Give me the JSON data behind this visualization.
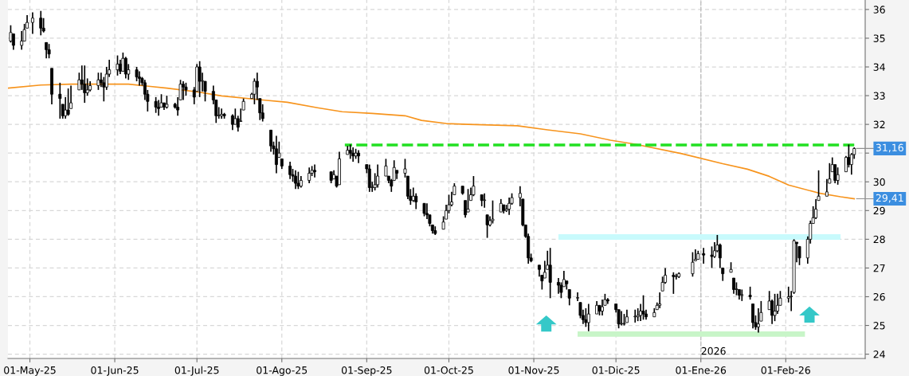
{
  "chart_data": {
    "type": "candlestick",
    "color": "#000000",
    "x": [
      "2025-04-24",
      "2025-04-25",
      "2025-04-28",
      "2025-04-29",
      "2025-04-30",
      "2025-05-02",
      "2025-05-05",
      "2025-05-06",
      "2025-05-07",
      "2025-05-08",
      "2025-05-09",
      "2025-05-12",
      "2025-05-13",
      "2025-05-14",
      "2025-05-15",
      "2025-05-16",
      "2025-05-19",
      "2025-05-20",
      "2025-05-21",
      "2025-05-22",
      "2025-05-23",
      "2025-05-26",
      "2025-05-27",
      "2025-05-28",
      "2025-05-29",
      "2025-05-30",
      "2025-06-02",
      "2025-06-03",
      "2025-06-04",
      "2025-06-05",
      "2025-06-06",
      "2025-06-09",
      "2025-06-10",
      "2025-06-11",
      "2025-06-12",
      "2025-06-13",
      "2025-06-16",
      "2025-06-17",
      "2025-06-18",
      "2025-06-19",
      "2025-06-20",
      "2025-06-23",
      "2025-06-24",
      "2025-06-25",
      "2025-06-26",
      "2025-06-27",
      "2025-06-30",
      "2025-07-01",
      "2025-07-02",
      "2025-07-03",
      "2025-07-04",
      "2025-07-07",
      "2025-07-08",
      "2025-07-09",
      "2025-07-10",
      "2025-07-11",
      "2025-07-14",
      "2025-07-15",
      "2025-07-16",
      "2025-07-17",
      "2025-07-18",
      "2025-07-21",
      "2025-07-22",
      "2025-07-23",
      "2025-07-24",
      "2025-07-25",
      "2025-07-28",
      "2025-07-29",
      "2025-07-30",
      "2025-07-31",
      "2025-08-01",
      "2025-08-04",
      "2025-08-05",
      "2025-08-06",
      "2025-08-07",
      "2025-08-08",
      "2025-08-11",
      "2025-08-12",
      "2025-08-13",
      "2025-08-19",
      "2025-08-20",
      "2025-08-21",
      "2025-08-22",
      "2025-08-25",
      "2025-08-26",
      "2025-08-27",
      "2025-08-28",
      "2025-08-29",
      "2025-09-01",
      "2025-09-02",
      "2025-09-03",
      "2025-09-04",
      "2025-09-05",
      "2025-09-08",
      "2025-09-09",
      "2025-09-10",
      "2025-09-11",
      "2025-09-12",
      "2025-09-15",
      "2025-09-16",
      "2025-09-17",
      "2025-09-18",
      "2025-09-19",
      "2025-09-22",
      "2025-09-23",
      "2025-09-24",
      "2025-09-25",
      "2025-09-26",
      "2025-09-29",
      "2025-09-30",
      "2025-10-01",
      "2025-10-02",
      "2025-10-03",
      "2025-10-06",
      "2025-10-07",
      "2025-10-08",
      "2025-10-09",
      "2025-10-10",
      "2025-10-13",
      "2025-10-14",
      "2025-10-15",
      "2025-10-16",
      "2025-10-17",
      "2025-10-20",
      "2025-10-21",
      "2025-10-22",
      "2025-10-23",
      "2025-10-24",
      "2025-10-27",
      "2025-10-28",
      "2025-10-29",
      "2025-10-30",
      "2025-10-31",
      "2025-11-03",
      "2025-11-04",
      "2025-11-05",
      "2025-11-06",
      "2025-11-07",
      "2025-11-10",
      "2025-11-11",
      "2025-11-12",
      "2025-11-13",
      "2025-11-14",
      "2025-11-17",
      "2025-11-18",
      "2025-11-19",
      "2025-11-20",
      "2025-11-21",
      "2025-11-24",
      "2025-11-25",
      "2025-11-26",
      "2025-11-27",
      "2025-11-28",
      "2025-12-01",
      "2025-12-02",
      "2025-12-03",
      "2025-12-04",
      "2025-12-05",
      "2025-12-08",
      "2025-12-09",
      "2025-12-10",
      "2025-12-11",
      "2025-12-12",
      "2025-12-15",
      "2025-12-16",
      "2025-12-17",
      "2025-12-18",
      "2025-12-19",
      "2025-12-22",
      "2025-12-23",
      "2025-12-24",
      "2025-12-29",
      "2025-12-30",
      "2025-12-31",
      "2026-01-02",
      "2026-01-05",
      "2026-01-06",
      "2026-01-07",
      "2026-01-08",
      "2026-01-09",
      "2026-01-12",
      "2026-01-13",
      "2026-01-14",
      "2026-01-15",
      "2026-01-16",
      "2026-01-19",
      "2026-01-20",
      "2026-01-21",
      "2026-01-22",
      "2026-01-23",
      "2026-01-26",
      "2026-01-27",
      "2026-01-28",
      "2026-01-29",
      "2026-01-30",
      "2026-02-02",
      "2026-02-03",
      "2026-02-04",
      "2026-02-05",
      "2026-02-06",
      "2026-02-09",
      "2026-02-10",
      "2026-02-11",
      "2026-02-12",
      "2026-02-13",
      "2026-02-16",
      "2026-02-17",
      "2026-02-18",
      "2026-02-19",
      "2026-02-20",
      "2026-02-23",
      "2026-02-24",
      "2026-02-25",
      "2026-02-26"
    ],
    "ohlc": [
      [
        34.9,
        35.45,
        34.85,
        35.2
      ],
      [
        35.15,
        35.15,
        34.6,
        34.75
      ],
      [
        34.75,
        35.25,
        34.6,
        34.9
      ],
      [
        34.9,
        35.5,
        34.9,
        35.3
      ],
      [
        35.35,
        35.8,
        35.35,
        35.55
      ],
      [
        35.55,
        35.9,
        35.15,
        35.7
      ],
      [
        35.7,
        35.95,
        35.1,
        35.35
      ],
      [
        35.35,
        35.7,
        35.2,
        35.25
      ],
      [
        34.85,
        34.85,
        34.3,
        34.6
      ],
      [
        34.6,
        34.8,
        34.3,
        34.45
      ],
      [
        33.95,
        33.95,
        32.7,
        33.05
      ],
      [
        33.05,
        33.45,
        32.2,
        32.9
      ],
      [
        32.7,
        32.7,
        32.2,
        32.3
      ],
      [
        32.3,
        32.95,
        32.2,
        32.5
      ],
      [
        32.5,
        33.25,
        32.3,
        32.35
      ],
      [
        32.55,
        33.35,
        32.55,
        32.75
      ],
      [
        33.2,
        33.8,
        33.2,
        33.55
      ],
      [
        33.55,
        34.05,
        33.2,
        33.4
      ],
      [
        33.4,
        34.05,
        32.75,
        33.1
      ],
      [
        33.1,
        33.6,
        33.0,
        33.2
      ],
      [
        33.2,
        33.5,
        33.15,
        33.35
      ],
      [
        33.35,
        33.8,
        33.2,
        33.55
      ],
      [
        33.55,
        33.8,
        33.3,
        33.45
      ],
      [
        33.45,
        33.65,
        32.8,
        33.3
      ],
      [
        33.3,
        34.0,
        33.2,
        33.75
      ],
      [
        33.75,
        34.25,
        33.65,
        33.9
      ],
      [
        33.9,
        34.4,
        33.7,
        34.1
      ],
      [
        34.1,
        34.25,
        33.75,
        33.85
      ],
      [
        33.85,
        34.5,
        33.85,
        34.3
      ],
      [
        34.3,
        34.35,
        33.6,
        33.75
      ],
      [
        33.75,
        34.1,
        33.55,
        33.9
      ],
      [
        33.9,
        34.0,
        33.5,
        33.65
      ],
      [
        33.65,
        33.85,
        33.35,
        33.6
      ],
      [
        33.6,
        33.65,
        33.35,
        33.45
      ],
      [
        33.45,
        33.55,
        32.85,
        33.05
      ],
      [
        33.05,
        33.2,
        32.45,
        32.8
      ],
      [
        32.8,
        32.95,
        32.4,
        32.6
      ],
      [
        32.6,
        32.85,
        32.3,
        32.55
      ],
      [
        32.6,
        33.05,
        32.6,
        32.75
      ],
      [
        32.75,
        32.75,
        32.5,
        32.6
      ],
      [
        32.6,
        33.0,
        32.55,
        32.7
      ],
      [
        32.7,
        32.75,
        32.55,
        32.6
      ],
      [
        32.6,
        32.95,
        32.3,
        32.5
      ],
      [
        32.85,
        33.55,
        32.85,
        33.4
      ],
      [
        33.4,
        33.5,
        32.85,
        33.3
      ],
      [
        33.3,
        33.45,
        33.0,
        33.2
      ],
      [
        33.2,
        33.3,
        32.7,
        32.95
      ],
      [
        33.15,
        34.1,
        33.15,
        34.0
      ],
      [
        34.0,
        34.2,
        32.95,
        33.5
      ],
      [
        33.5,
        33.8,
        33.15,
        33.5
      ],
      [
        33.5,
        33.5,
        32.8,
        33.15
      ],
      [
        33.15,
        33.35,
        32.7,
        32.85
      ],
      [
        32.85,
        32.85,
        32.05,
        32.3
      ],
      [
        32.3,
        32.6,
        32.2,
        32.3
      ],
      [
        32.3,
        32.55,
        32.2,
        32.35
      ],
      [
        32.35,
        32.4,
        32.2,
        32.3
      ],
      [
        32.3,
        32.35,
        31.8,
        32.0
      ],
      [
        32.0,
        32.55,
        32.0,
        32.2
      ],
      [
        32.2,
        32.3,
        31.75,
        31.9
      ],
      [
        32.1,
        32.55,
        32.1,
        32.1
      ],
      [
        32.5,
        32.9,
        32.5,
        32.8
      ],
      [
        32.9,
        33.1,
        32.9,
        33.05
      ],
      [
        33.05,
        33.6,
        32.7,
        33.5
      ],
      [
        33.5,
        33.8,
        32.85,
        33.3
      ],
      [
        32.9,
        32.9,
        32.15,
        32.4
      ],
      [
        32.4,
        32.7,
        32.1,
        32.2
      ],
      [
        31.8,
        31.8,
        31.05,
        31.25
      ],
      [
        31.25,
        31.4,
        30.95,
        31.15
      ],
      [
        31.15,
        31.6,
        30.3,
        30.6
      ],
      [
        30.85,
        31.4,
        30.85,
        31.0
      ],
      [
        30.8,
        30.8,
        30.45,
        30.55
      ],
      [
        30.55,
        30.7,
        30.1,
        30.25
      ],
      [
        30.25,
        30.45,
        30.0,
        30.2
      ],
      [
        30.2,
        30.4,
        29.75,
        29.95
      ],
      [
        29.95,
        30.35,
        29.75,
        29.85
      ],
      [
        29.85,
        30.2,
        29.8,
        30.05
      ],
      [
        30.05,
        30.5,
        29.95,
        30.3
      ],
      [
        30.3,
        30.55,
        30.2,
        30.4
      ],
      [
        30.4,
        30.6,
        30.15,
        30.35
      ],
      [
        30.35,
        30.35,
        29.95,
        30.05
      ],
      [
        30.1,
        30.4,
        30.1,
        30.25
      ],
      [
        30.2,
        30.2,
        29.8,
        29.85
      ],
      [
        29.9,
        31.05,
        29.9,
        30.8
      ],
      [
        30.95,
        31.25,
        30.95,
        31.1
      ],
      [
        31.1,
        31.3,
        30.8,
        31.0
      ],
      [
        31.0,
        31.2,
        30.7,
        30.9
      ],
      [
        30.9,
        31.15,
        30.8,
        31.0
      ],
      [
        31.0,
        31.1,
        30.65,
        30.9
      ],
      [
        30.6,
        30.6,
        30.3,
        30.45
      ],
      [
        30.45,
        30.6,
        29.65,
        29.8
      ],
      [
        29.8,
        30.0,
        29.65,
        29.8
      ],
      [
        29.8,
        30.3,
        29.7,
        29.9
      ],
      [
        29.9,
        30.6,
        29.8,
        30.2
      ],
      [
        30.2,
        30.8,
        30.2,
        30.55
      ],
      [
        30.2,
        30.2,
        29.95,
        30.05
      ],
      [
        30.05,
        30.1,
        29.65,
        29.85
      ],
      [
        30.05,
        30.75,
        30.05,
        30.5
      ],
      [
        30.4,
        30.4,
        30.1,
        30.3
      ],
      [
        30.3,
        30.8,
        30.15,
        30.45
      ],
      [
        30.2,
        30.2,
        29.4,
        29.5
      ],
      [
        29.5,
        29.75,
        29.2,
        29.35
      ],
      [
        29.35,
        29.8,
        29.3,
        29.5
      ],
      [
        29.5,
        29.6,
        29.05,
        29.3
      ],
      [
        29.25,
        29.25,
        28.8,
        28.9
      ],
      [
        28.9,
        29.25,
        28.7,
        28.85
      ],
      [
        28.85,
        28.85,
        28.45,
        28.55
      ],
      [
        28.5,
        28.5,
        28.2,
        28.3
      ],
      [
        28.3,
        28.45,
        28.15,
        28.2
      ],
      [
        28.35,
        28.8,
        28.35,
        28.6
      ],
      [
        28.7,
        29.2,
        28.7,
        29.0
      ],
      [
        29.0,
        29.55,
        28.9,
        29.2
      ],
      [
        29.2,
        29.65,
        29.15,
        29.3
      ],
      [
        29.55,
        29.95,
        29.55,
        29.85
      ],
      [
        29.85,
        29.85,
        29.55,
        29.6
      ],
      [
        29.35,
        29.35,
        28.75,
        28.85
      ],
      [
        28.95,
        29.75,
        28.95,
        29.05
      ],
      [
        29.35,
        29.8,
        29.35,
        29.55
      ],
      [
        29.55,
        30.2,
        29.5,
        29.85
      ],
      [
        29.55,
        29.55,
        29.15,
        29.35
      ],
      [
        29.35,
        29.6,
        29.1,
        29.35
      ],
      [
        28.85,
        28.85,
        28.05,
        28.5
      ],
      [
        28.5,
        28.8,
        28.45,
        28.65
      ],
      [
        28.65,
        29.35,
        28.55,
        28.7
      ],
      [
        28.95,
        29.4,
        28.95,
        29.25
      ],
      [
        29.2,
        29.2,
        28.9,
        29.0
      ],
      [
        29.0,
        29.2,
        28.95,
        29.05
      ],
      [
        29.05,
        29.45,
        28.85,
        29.25
      ],
      [
        29.25,
        29.6,
        29.2,
        29.45
      ],
      [
        29.45,
        29.85,
        29.15,
        29.6
      ],
      [
        29.4,
        29.4,
        28.45,
        28.5
      ],
      [
        28.5,
        28.5,
        28.05,
        28.1
      ],
      [
        28.1,
        28.2,
        27.15,
        27.35
      ],
      [
        27.35,
        27.5,
        27.2,
        27.25
      ],
      [
        27.1,
        27.1,
        26.7,
        26.95
      ],
      [
        26.75,
        26.75,
        26.25,
        26.55
      ],
      [
        26.65,
        27.25,
        26.65,
        26.85
      ],
      [
        26.95,
        27.6,
        26.95,
        27.1
      ],
      [
        27.1,
        27.7,
        25.95,
        26.5
      ],
      [
        26.5,
        26.65,
        26.1,
        26.4
      ],
      [
        26.4,
        26.5,
        25.95,
        26.15
      ],
      [
        26.35,
        26.9,
        26.35,
        26.6
      ],
      [
        26.55,
        26.55,
        26.25,
        26.45
      ],
      [
        26.25,
        26.25,
        25.7,
        25.95
      ],
      [
        25.95,
        26.15,
        25.85,
        25.95
      ],
      [
        25.8,
        25.8,
        25.25,
        25.35
      ],
      [
        25.35,
        25.55,
        25.05,
        25.2
      ],
      [
        25.2,
        25.6,
        24.95,
        25.1
      ],
      [
        25.1,
        25.75,
        24.8,
        25.4
      ],
      [
        25.4,
        25.85,
        25.4,
        25.7
      ],
      [
        25.7,
        25.7,
        25.35,
        25.5
      ],
      [
        25.5,
        25.9,
        25.35,
        25.65
      ],
      [
        25.7,
        26.1,
        25.7,
        25.9
      ],
      [
        25.9,
        25.95,
        25.75,
        25.85
      ],
      [
        25.75,
        25.75,
        25.45,
        25.55
      ],
      [
        25.55,
        25.55,
        24.9,
        25.05
      ],
      [
        25.05,
        25.5,
        25.0,
        25.05
      ],
      [
        25.05,
        25.4,
        25.0,
        25.05
      ],
      [
        25.1,
        25.55,
        25.1,
        25.3
      ],
      [
        25.3,
        25.55,
        25.1,
        25.3
      ],
      [
        25.3,
        25.6,
        25.15,
        25.35
      ],
      [
        25.35,
        25.75,
        25.15,
        25.5
      ],
      [
        25.5,
        26.05,
        25.2,
        25.4
      ],
      [
        25.4,
        25.55,
        25.2,
        25.3
      ],
      [
        25.3,
        25.6,
        25.3,
        25.45
      ],
      [
        25.55,
        25.8,
        25.55,
        25.7
      ],
      [
        25.7,
        26.15,
        25.6,
        25.75
      ],
      [
        26.2,
        26.7,
        26.2,
        26.5
      ],
      [
        26.5,
        27.0,
        26.45,
        26.75
      ],
      [
        26.75,
        26.85,
        26.1,
        26.7
      ],
      [
        26.7,
        26.8,
        26.6,
        26.7
      ],
      [
        26.7,
        26.85,
        26.65,
        26.8
      ],
      [
        26.8,
        27.55,
        26.7,
        27.2
      ],
      [
        27.25,
        27.65,
        27.25,
        27.3
      ],
      [
        27.3,
        27.6,
        27.3,
        27.5
      ],
      [
        27.5,
        27.7,
        27.15,
        27.45
      ],
      [
        27.45,
        27.75,
        27.0,
        27.4
      ],
      [
        27.4,
        27.9,
        27.35,
        27.6
      ],
      [
        27.6,
        28.15,
        27.55,
        27.8
      ],
      [
        27.8,
        27.85,
        27.0,
        27.35
      ],
      [
        27.0,
        27.0,
        26.55,
        26.8
      ],
      [
        26.85,
        27.2,
        26.85,
        26.95
      ],
      [
        26.65,
        26.65,
        26.1,
        26.25
      ],
      [
        26.25,
        26.5,
        26.05,
        26.25
      ],
      [
        26.25,
        26.25,
        25.9,
        26.05
      ],
      [
        26.05,
        26.25,
        25.85,
        26.05
      ],
      [
        26.05,
        26.35,
        25.9,
        26.0
      ],
      [
        25.75,
        25.75,
        24.9,
        25.1
      ],
      [
        25.1,
        25.35,
        24.85,
        24.95
      ],
      [
        24.95,
        25.6,
        24.75,
        25.05
      ],
      [
        25.15,
        25.85,
        25.15,
        25.45
      ],
      [
        25.55,
        26.2,
        25.55,
        25.85
      ],
      [
        25.85,
        25.9,
        25.05,
        25.35
      ],
      [
        25.35,
        26.1,
        25.15,
        25.5
      ],
      [
        25.5,
        26.1,
        25.4,
        25.7
      ],
      [
        25.7,
        26.2,
        25.7,
        25.95
      ],
      [
        25.95,
        26.35,
        25.8,
        26.0
      ],
      [
        26.0,
        26.2,
        25.5,
        26.0
      ],
      [
        26.15,
        28.0,
        26.1,
        27.95
      ],
      [
        27.9,
        27.9,
        27.2,
        27.85
      ],
      [
        27.75,
        27.75,
        27.1,
        27.35
      ],
      [
        27.35,
        28.1,
        27.15,
        28.0
      ],
      [
        28.0,
        28.65,
        27.85,
        28.55
      ],
      [
        28.55,
        29.15,
        28.55,
        28.75
      ],
      [
        28.75,
        29.4,
        28.7,
        29.05
      ],
      [
        29.35,
        30.4,
        29.35,
        29.5
      ],
      [
        29.5,
        30.1,
        29.5,
        29.65
      ],
      [
        29.95,
        30.65,
        29.95,
        30.1
      ],
      [
        30.35,
        30.85,
        30.35,
        30.6
      ],
      [
        30.6,
        30.6,
        29.95,
        30.05
      ],
      [
        30.05,
        30.5,
        29.9,
        30.25
      ],
      [
        30.35,
        30.9,
        30.35,
        30.85
      ],
      [
        30.85,
        31.3,
        30.5,
        30.6
      ],
      [
        30.6,
        31.0,
        30.25,
        30.95
      ],
      [
        30.95,
        31.2,
        30.8,
        31.16
      ]
    ],
    "series": [
      {
        "type": "line",
        "color": "#f7941d",
        "line_style": "solid",
        "x": [
          "2025-04-23",
          "2025-05-05",
          "2025-05-16",
          "2025-06-06",
          "2025-06-14",
          "2025-06-20",
          "2025-07-02",
          "2025-07-10",
          "2025-07-25",
          "2025-08-03",
          "2025-08-14",
          "2025-08-23",
          "2025-09-03",
          "2025-09-15",
          "2025-09-21",
          "2025-09-30",
          "2025-10-08",
          "2025-10-26",
          "2025-11-06",
          "2025-11-18",
          "2025-11-29",
          "2025-12-08",
          "2025-12-25",
          "2026-01-09",
          "2026-01-18",
          "2026-01-26",
          "2026-02-02",
          "2026-02-13",
          "2026-02-21",
          "2026-02-26"
        ],
        "values": [
          33.26,
          33.37,
          33.4,
          33.4,
          33.32,
          33.26,
          33.12,
          32.99,
          32.85,
          32.77,
          32.58,
          32.44,
          32.38,
          32.3,
          32.14,
          32.03,
          32.0,
          31.95,
          31.81,
          31.67,
          31.45,
          31.31,
          30.98,
          30.63,
          30.44,
          30.19,
          29.89,
          29.61,
          29.48,
          29.41
        ]
      },
      {
        "type": "line",
        "color": "#22e022",
        "line_style": "dashed",
        "x": [
          "2025-08-24",
          "2026-02-26"
        ],
        "values": [
          31.28,
          31.28
        ]
      },
      {
        "type": "line",
        "color": "#c8fafc",
        "line_style": "solid",
        "x": [
          "2025-11-11",
          "2026-02-20"
        ],
        "values": [
          28.08,
          28.08
        ]
      },
      {
        "type": "line",
        "color": "#c8f5c8",
        "line_style": "solid",
        "x": [
          "2025-11-18",
          "2026-02-07"
        ],
        "values": [
          24.7,
          24.7
        ]
      }
    ],
    "xlim": [
      "2025-04-23",
      "2026-03-02"
    ],
    "xticks": [
      {
        "value": "2025-05-01",
        "label": "01-May-25"
      },
      {
        "value": "2025-06-01",
        "label": "01-Jun-25"
      },
      {
        "value": "2025-07-01",
        "label": "01-Jul-25"
      },
      {
        "value": "2025-08-01",
        "label": "01-Ago-25"
      },
      {
        "value": "2025-09-01",
        "label": "01-Sep-25"
      },
      {
        "value": "2025-10-01",
        "label": "01-Oct-25"
      },
      {
        "value": "2025-11-01",
        "label": "01-Nov-25"
      },
      {
        "value": "2025-12-01",
        "label": "01-Dic-25"
      },
      {
        "value": "2026-01-01",
        "label": "01-Ene-26"
      },
      {
        "value": "2026-02-01",
        "label": "01-Feb-26"
      }
    ],
    "ylim": [
      23.85,
      36.33
    ],
    "yticks": [
      24,
      25,
      26,
      27,
      28,
      29,
      30,
      {
        "value": 31,
        "label": null
      },
      32,
      33,
      34,
      35,
      36
    ],
    "grid": true,
    "ref_lines": [
      {
        "axis": "x",
        "value": "2026-01-01",
        "label": "2026",
        "color": "#c0c0c0",
        "line_style": "dashed"
      }
    ],
    "annotations": [
      {
        "text": "31,16",
        "x": "2026-02-26",
        "y": 31.16
      },
      {
        "text": "29,41",
        "x": "2026-02-26",
        "y": 29.41
      }
    ]
  }
}
